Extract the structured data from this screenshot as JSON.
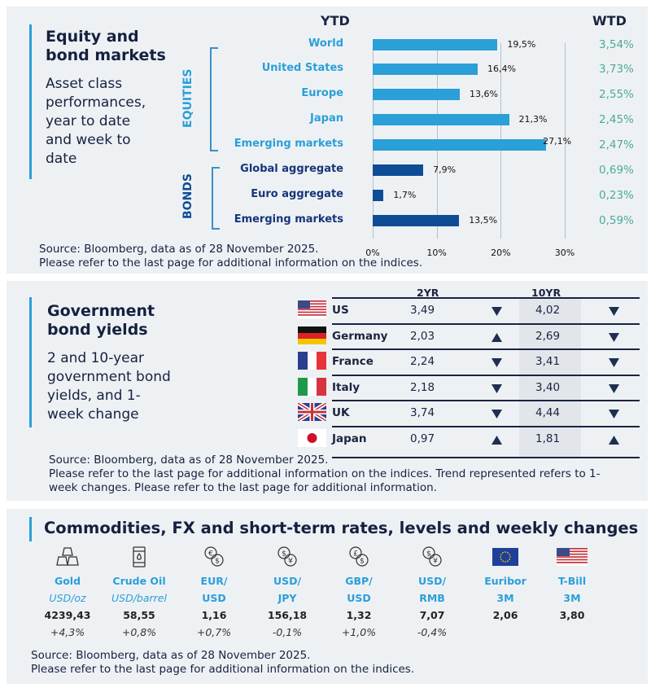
{
  "equity": {
    "title": "Equity and bond markets",
    "title_l1": "Equity and",
    "title_l2": "bond markets",
    "subtitle": "Asset class performances, year to date and week to date",
    "sub_lines": [
      "Asset class",
      "performances,",
      "year to date",
      "and week to",
      "date"
    ],
    "ytd_header": "YTD",
    "wtd_header": "WTD",
    "group_equities": "EQUITIES",
    "group_bonds": "BONDS",
    "source": "Source: Bloomberg, data as of 28 November 2025.",
    "note": "Please refer to the last page for additional information on the indices."
  },
  "chart_data": {
    "type": "bar",
    "orientation": "horizontal",
    "categories": [
      "World",
      "United States",
      "Europe",
      "Japan",
      "Emerging  markets",
      "Global aggregate",
      "Euro aggregate",
      "Emerging  markets"
    ],
    "groups": [
      "EQUITIES",
      "EQUITIES",
      "EQUITIES",
      "EQUITIES",
      "EQUITIES",
      "BONDS",
      "BONDS",
      "BONDS"
    ],
    "values": [
      19.5,
      16.4,
      13.6,
      21.3,
      27.1,
      7.9,
      1.7,
      13.5
    ],
    "value_labels": [
      "19,5%",
      "16,4%",
      "13,6%",
      "21,3%",
      "27,1%",
      "7,9%",
      "1,7%",
      "13,5%"
    ],
    "wtd": [
      "3,54%",
      "3,73%",
      "2,55%",
      "2,45%",
      "2,47%",
      "0,69%",
      "0,23%",
      "0,59%"
    ],
    "xlim": [
      0,
      30
    ],
    "ticks": [
      "0%",
      "10%",
      "20%",
      "30%"
    ],
    "grid": true,
    "colors": {
      "equities": "#2a9fd8",
      "bonds": "#0f4c96",
      "wtd": "#4aaa9a"
    }
  },
  "bonds": {
    "title_l1": "Government",
    "title_l2": "bond yields",
    "sub_lines": [
      "2 and 10-year",
      "government bond",
      "yields, and 1-",
      "week change"
    ],
    "col_2yr": "2YR",
    "col_10yr": "10YR",
    "rows": [
      {
        "country": "US",
        "flag": "us-flag",
        "y2": "3,49",
        "t2": "down",
        "y10": "4,02",
        "t10": "down"
      },
      {
        "country": "Germany",
        "flag": "germany-flag",
        "y2": "2,03",
        "t2": "up",
        "y10": "2,69",
        "t10": "down"
      },
      {
        "country": "France",
        "flag": "france-flag",
        "y2": "2,24",
        "t2": "down",
        "y10": "3,41",
        "t10": "down"
      },
      {
        "country": "Italy",
        "flag": "italy-flag",
        "y2": "2,18",
        "t2": "down",
        "y10": "3,40",
        "t10": "down"
      },
      {
        "country": "UK",
        "flag": "uk-flag",
        "y2": "3,74",
        "t2": "down",
        "y10": "4,44",
        "t10": "down"
      },
      {
        "country": "Japan",
        "flag": "japan-flag",
        "y2": "0,97",
        "t2": "up",
        "y10": "1,81",
        "t10": "up"
      }
    ],
    "source": "Source: Bloomberg, data as of 28 November 2025.",
    "note1": "Please refer to the last page for additional information on the indices. Trend represented refers to 1-",
    "note2": "week changes. Please refer to the last page for additional information."
  },
  "commodities": {
    "title": "Commodities, FX and short-term rates, levels and weekly changes",
    "items": [
      {
        "icon": "gold-bars-icon",
        "name": "Gold",
        "unit": "USD/oz",
        "value": "4239,43",
        "change": "+4,3%"
      },
      {
        "icon": "oil-barrel-icon",
        "name": "Crude Oil",
        "unit": "USD/barrel",
        "value": "58,55",
        "change": "+0,8%"
      },
      {
        "icon": "currency-exchange-icon",
        "name": "EUR/",
        "unit": "USD",
        "value": "1,16",
        "change": "+0,7%"
      },
      {
        "icon": "currency-exchange-icon",
        "name": "USD/",
        "unit": "JPY",
        "value": "156,18",
        "change": "-0,1%"
      },
      {
        "icon": "currency-exchange-icon",
        "name": "GBP/",
        "unit": "USD",
        "value": "1,32",
        "change": "+1,0%"
      },
      {
        "icon": "currency-exchange-icon",
        "name": "USD/",
        "unit": "RMB",
        "value": "7,07",
        "change": "-0,4%"
      },
      {
        "icon": "eu-flag-icon",
        "name": "Euribor",
        "unit": "3M",
        "value": "2,06",
        "change": ""
      },
      {
        "icon": "us-flag-icon",
        "name": "T-Bill",
        "unit": "3M",
        "value": "3,80",
        "change": ""
      }
    ],
    "glyphs": [
      "€$",
      "$¥",
      "£$",
      "$¥"
    ],
    "source": "Source: Bloomberg, data as of 28 November 2025.",
    "note": "Please refer to the last page for additional information on the indices."
  }
}
